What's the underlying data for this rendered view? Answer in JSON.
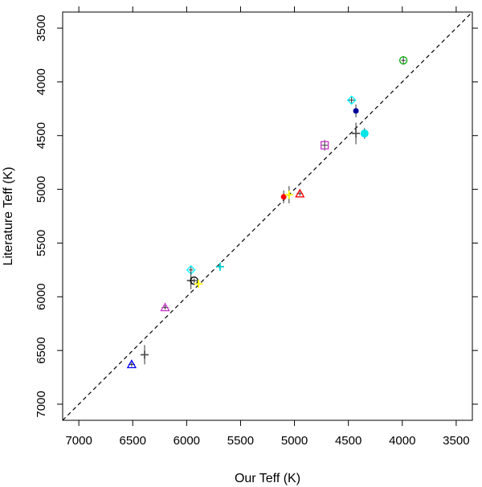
{
  "chart_data": {
    "type": "scatter",
    "title": "",
    "xlabel": "Our Teff (K)",
    "ylabel": "Literature Teff (K)",
    "xlim": [
      7150,
      3350
    ],
    "ylim": [
      7150,
      3350
    ],
    "x_reversed": true,
    "y_reversed": true,
    "grid": false,
    "legend": "none",
    "x_ticks": [
      7000,
      6500,
      6000,
      5500,
      5000,
      4500,
      4000,
      3500
    ],
    "y_ticks": [
      3500,
      4000,
      4500,
      5000,
      5500,
      6000,
      6500,
      7000
    ],
    "x_tick_labels": [
      "7000",
      "6500",
      "6000",
      "5500",
      "5000",
      "4500",
      "4000",
      "3500"
    ],
    "y_tick_labels": [
      "3500",
      "4000",
      "4500",
      "5000",
      "5500",
      "6000",
      "6500",
      "7000"
    ],
    "reference_line": {
      "style": "dashed",
      "color": "#000000",
      "relation": "y = x"
    },
    "points": [
      {
        "x": 6510,
        "y": 6630,
        "marker": "triangle-open",
        "color": "#0000ff",
        "xerr": 30,
        "yerr": 20
      },
      {
        "x": 6390,
        "y": 6540,
        "marker": "plus",
        "color": "#555555",
        "xerr": 20,
        "yerr": 90
      },
      {
        "x": 6200,
        "y": 6100,
        "marker": "triangle-open",
        "color": "#cc33cc",
        "xerr": 30,
        "yerr": 20
      },
      {
        "x": 5960,
        "y": 5750,
        "marker": "diamond-open",
        "color": "#00ffff",
        "xerr": 20,
        "yerr": 40
      },
      {
        "x": 5960,
        "y": 5850,
        "marker": "plus",
        "color": "#555555",
        "xerr": 30,
        "yerr": 80
      },
      {
        "x": 5930,
        "y": 5850,
        "marker": "circle-open",
        "color": "#000000",
        "xerr": 30,
        "yerr": 20
      },
      {
        "x": 5890,
        "y": 5880,
        "marker": "plus",
        "color": "#ffff00",
        "xerr": 30,
        "yerr": 20
      },
      {
        "x": 5690,
        "y": 5720,
        "marker": "plus",
        "color": "#00cccc",
        "xerr": 30,
        "yerr": 30
      },
      {
        "x": 5100,
        "y": 5070,
        "marker": "dot",
        "color": "#ff0000",
        "xerr": 20,
        "yerr": 60
      },
      {
        "x": 5050,
        "y": 5050,
        "marker": "plus",
        "color": "#ffff00",
        "xerr": 20,
        "yerr": 80
      },
      {
        "x": 4950,
        "y": 5040,
        "marker": "triangle-open",
        "color": "#ff0000",
        "xerr": 30,
        "yerr": 20
      },
      {
        "x": 4720,
        "y": 4590,
        "marker": "square-open",
        "color": "#cc33cc",
        "xerr": 30,
        "yerr": 50
      },
      {
        "x": 4470,
        "y": 4170,
        "marker": "diamond-open",
        "color": "#00ffff",
        "xerr": 30,
        "yerr": 30
      },
      {
        "x": 4430,
        "y": 4270,
        "marker": "dot",
        "color": "#000099",
        "xerr": 10,
        "yerr": 60
      },
      {
        "x": 4430,
        "y": 4480,
        "marker": "plus",
        "color": "#555555",
        "xerr": 30,
        "yerr": 100
      },
      {
        "x": 4350,
        "y": 4480,
        "marker": "dot-large",
        "color": "#00e5e5",
        "xerr": 20,
        "yerr": 50
      },
      {
        "x": 3990,
        "y": 3800,
        "marker": "circle-open-plus",
        "color": "#00aa00",
        "xerr": 20,
        "yerr": 40
      }
    ]
  }
}
